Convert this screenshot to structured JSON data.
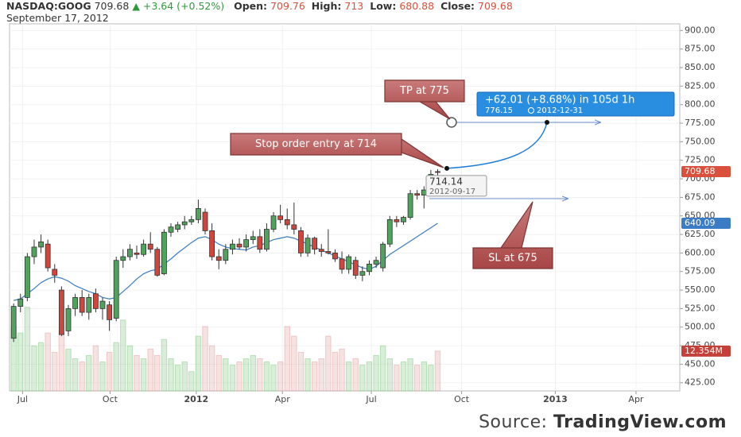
{
  "chart_data": {
    "type": "candlestick",
    "title": "NASDAQ:GOOG",
    "last": 709.68,
    "change": "+3.64 (+0.52%)",
    "ohlc_header": [
      {
        "label": "Open:",
        "value": 709.76
      },
      {
        "label": "High:",
        "value": 713
      },
      {
        "label": "Low:",
        "value": 680.88
      },
      {
        "label": "Close:",
        "value": 709.68
      }
    ],
    "date": "September 17, 2012",
    "source_label": "Source:",
    "source_name": "TradingView.com",
    "xlim": [
      -0.6,
      97.4
    ],
    "xticks": [
      {
        "value": 1.3,
        "label": "Jul"
      },
      {
        "value": 14.1,
        "label": "Oct"
      },
      {
        "value": 26.7,
        "label": "2012"
      },
      {
        "value": 39.3,
        "label": "Apr"
      },
      {
        "value": 52.3,
        "label": "Jul"
      },
      {
        "value": 65.5,
        "label": "Oct"
      },
      {
        "value": 79.2,
        "label": "2013"
      },
      {
        "value": 91.0,
        "label": "Apr"
      }
    ],
    "ylim": [
      414,
      909
    ],
    "yticks": [
      {
        "value": 425,
        "label": "425.00"
      },
      {
        "value": 450,
        "label": "450.00"
      },
      {
        "value": 475,
        "label": "475.00"
      },
      {
        "value": 500,
        "label": "500.00"
      },
      {
        "value": 525,
        "label": "525.00"
      },
      {
        "value": 550,
        "label": "550.00"
      },
      {
        "value": 575,
        "label": "575.00"
      },
      {
        "value": 600,
        "label": "600.00"
      },
      {
        "value": 625,
        "label": "625.00"
      },
      {
        "value": 650,
        "label": "650.00"
      },
      {
        "value": 675,
        "label": "675.00"
      },
      {
        "value": 700,
        "label": "700.00"
      },
      {
        "value": 725,
        "label": "725.00"
      },
      {
        "value": 750,
        "label": "750.00"
      },
      {
        "value": 775,
        "label": "775.00"
      },
      {
        "value": 800,
        "label": "800.00"
      },
      {
        "value": 825,
        "label": "825.00"
      },
      {
        "value": 850,
        "label": "850.00"
      },
      {
        "value": 875,
        "label": "875.00"
      },
      {
        "value": 900,
        "label": "900.00"
      }
    ],
    "grid": true,
    "up_color": "#4fa35c",
    "down_color": "#d0463d",
    "ohlc": [
      [
        485,
        532,
        480,
        528
      ],
      [
        528,
        545,
        520,
        538
      ],
      [
        540,
        600,
        535,
        595
      ],
      [
        595,
        618,
        585,
        608
      ],
      [
        608,
        625,
        600,
        615
      ],
      [
        612,
        618,
        575,
        580
      ],
      [
        578,
        585,
        560,
        570
      ],
      [
        550,
        555,
        488,
        490
      ],
      [
        495,
        530,
        488,
        525
      ],
      [
        525,
        545,
        515,
        540
      ],
      [
        540,
        550,
        515,
        520
      ],
      [
        520,
        545,
        510,
        540
      ],
      [
        545,
        552,
        520,
        525
      ],
      [
        525,
        540,
        510,
        535
      ],
      [
        530,
        535,
        495,
        510
      ],
      [
        512,
        595,
        508,
        590
      ],
      [
        590,
        605,
        580,
        595
      ],
      [
        595,
        612,
        590,
        605
      ],
      [
        600,
        610,
        592,
        598
      ],
      [
        598,
        618,
        595,
        612
      ],
      [
        612,
        628,
        600,
        605
      ],
      [
        605,
        608,
        568,
        570
      ],
      [
        572,
        632,
        570,
        628
      ],
      [
        628,
        640,
        622,
        635
      ],
      [
        632,
        642,
        628,
        638
      ],
      [
        638,
        650,
        632,
        642
      ],
      [
        642,
        650,
        638,
        645
      ],
      [
        645,
        672,
        640,
        660
      ],
      [
        655,
        660,
        625,
        630
      ],
      [
        630,
        640,
        590,
        595
      ],
      [
        595,
        605,
        578,
        590
      ],
      [
        590,
        612,
        585,
        605
      ],
      [
        605,
        618,
        598,
        612
      ],
      [
        612,
        620,
        605,
        608
      ],
      [
        608,
        625,
        602,
        618
      ],
      [
        618,
        630,
        612,
        622
      ],
      [
        622,
        632,
        600,
        605
      ],
      [
        605,
        640,
        602,
        632
      ],
      [
        632,
        655,
        628,
        650
      ],
      [
        650,
        665,
        640,
        645
      ],
      [
        645,
        660,
        632,
        638
      ],
      [
        638,
        668,
        625,
        632
      ],
      [
        630,
        635,
        595,
        600
      ],
      [
        600,
        625,
        595,
        620
      ],
      [
        620,
        622,
        598,
        605
      ],
      [
        605,
        612,
        595,
        602
      ],
      [
        602,
        632,
        598,
        600
      ],
      [
        600,
        605,
        588,
        592
      ],
      [
        592,
        602,
        572,
        578
      ],
      [
        578,
        598,
        572,
        595
      ],
      [
        590,
        595,
        565,
        570
      ],
      [
        570,
        582,
        562,
        575
      ],
      [
        575,
        590,
        570,
        585
      ],
      [
        585,
        595,
        580,
        590
      ],
      [
        580,
        615,
        575,
        612
      ],
      [
        612,
        650,
        608,
        645
      ],
      [
        645,
        650,
        635,
        642
      ],
      [
        642,
        650,
        638,
        648
      ],
      [
        648,
        685,
        645,
        680
      ],
      [
        680,
        685,
        672,
        678
      ],
      [
        678,
        690,
        660,
        685
      ],
      [
        685,
        712,
        680,
        706
      ],
      [
        709.76,
        713,
        680.88,
        709.68
      ]
    ],
    "volume": [
      20,
      18,
      26,
      14,
      15,
      18,
      12,
      18,
      13,
      10,
      9,
      11,
      14,
      9,
      12,
      15,
      22,
      14,
      11,
      10,
      13,
      11,
      16,
      10,
      8,
      9,
      6,
      17,
      20,
      14,
      11,
      10,
      8,
      9,
      10,
      11,
      10,
      9,
      8,
      9,
      20,
      17,
      12,
      10,
      9,
      10,
      17,
      12,
      13,
      9,
      10,
      8,
      9,
      11,
      14,
      10,
      8,
      9,
      10,
      8,
      9,
      8,
      12.354
    ],
    "volume_ylim": [
      0,
      114
    ],
    "volume_label": "12.354M",
    "volume_up_color": "rgba(120,195,120,0.28)",
    "volume_down_color": "rgba(225,150,150,0.28)",
    "ma": {
      "color": "#3b7cc4",
      "values": [
        536,
        538,
        545,
        552,
        560,
        565,
        568,
        566,
        562,
        556,
        552,
        548,
        545,
        540,
        538,
        540,
        548,
        556,
        565,
        572,
        576,
        578,
        585,
        592,
        600,
        607,
        614,
        620,
        622,
        618,
        612,
        608,
        606,
        605,
        604,
        608,
        610,
        614,
        618,
        620,
        622,
        620,
        616,
        612,
        608,
        604,
        600,
        596,
        592,
        588,
        584,
        580,
        578,
        582,
        590,
        598,
        604,
        610,
        616,
        622,
        628,
        634,
        640.09
      ]
    },
    "tooltip": {
      "value": 714.14,
      "date": "2012-09-17"
    },
    "measure": {
      "label": "+62.01 (+8.68%) in 105d 1h",
      "price": 776.15,
      "date": "2012-12-31"
    },
    "annotations": [
      "TP at 775",
      "Stop order entry at 714",
      "SL at 675"
    ]
  }
}
